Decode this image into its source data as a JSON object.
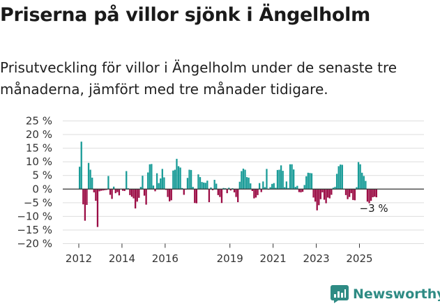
{
  "title": "Priserna på villor sjönk i Ängelholm",
  "subtitle": "Prisutveckling för villor i Ängelholm under de senaste tre månaderna, jämfört med tre månader tidigare.",
  "brand": {
    "name": "Newsworthy",
    "icon": "newsworthy-logo-icon"
  },
  "colors": {
    "positive": "#1a9c98",
    "negative": "#9b0d45",
    "grid": "#dddddd"
  },
  "chart_data": {
    "type": "bar",
    "ylim": [
      -20,
      25
    ],
    "yticks": [
      25,
      20,
      15,
      10,
      5,
      0,
      -5,
      -10,
      -15,
      -20
    ],
    "ytick_labels": [
      "25 %",
      "20 %",
      "15 %",
      "10 %",
      "5 %",
      "0 %",
      "−5 %",
      "−10 %",
      "−15 %",
      "−20 %"
    ],
    "xticks": [
      "2012",
      "2014",
      "2016",
      "2019",
      "2021",
      "2023",
      "2025"
    ],
    "annotation": "−3 %",
    "x_start": "2012-01",
    "values": [
      8.2,
      17.4,
      -5.6,
      -11.6,
      -5.8,
      9.6,
      7.1,
      4.2,
      -1.2,
      -4.3,
      -13.9,
      -0.8,
      -0.6,
      -0.5,
      -0.4,
      -0.3,
      4.8,
      -2.1,
      -3.6,
      0.9,
      -1.5,
      -1.1,
      -2.3,
      0.0,
      -0.6,
      -0.7,
      6.6,
      0.3,
      -2.2,
      -2.8,
      -3.4,
      -7.1,
      -4.6,
      -3.2,
      0.8,
      4.9,
      -2.4,
      -5.7,
      6.1,
      9.1,
      9.2,
      1.3,
      -0.8,
      5.8,
      2.2,
      3.9,
      7.4,
      4.3,
      -0.3,
      -2.9,
      -4.5,
      -4.1,
      6.8,
      7.1,
      11.1,
      8.4,
      7.9,
      0.4,
      -2.1,
      -0.2,
      4.1,
      7.1,
      7.0,
      0.8,
      -5.1,
      -5.2,
      5.4,
      4.4,
      2.6,
      2.4,
      2.3,
      3.1,
      -4.8,
      0.6,
      -0.4,
      3.4,
      2.0,
      -2.2,
      -2.9,
      -5.1,
      0.4,
      0.3,
      -1.5,
      0.5,
      -0.5,
      0.3,
      -1.2,
      -2.9,
      -4.8,
      2.7,
      6.6,
      7.5,
      7.1,
      4.4,
      4.2,
      2.1,
      -0.7,
      -3.4,
      -3.1,
      -2.2,
      2.2,
      -1.1,
      2.8,
      0.7,
      7.4,
      -0.2,
      0.7,
      1.9,
      2.2,
      0.5,
      7.0,
      7.1,
      8.7,
      6.7,
      0.7,
      2.8,
      0.4,
      9.1,
      9.1,
      7.2,
      0.8,
      1.2,
      -1.1,
      -1.2,
      -1.0,
      1.5,
      4.7,
      6.0,
      5.9,
      5.8,
      -3.1,
      -4.6,
      -7.8,
      -5.9,
      -3.7,
      -1.2,
      -3.9,
      -5.2,
      -3.1,
      -3.4,
      -2.1,
      0.5,
      0.8,
      5.6,
      8.4,
      9.0,
      8.9,
      0.0,
      -2.2,
      -3.7,
      -2.9,
      -1.5,
      -4.0,
      -4.1,
      0.7,
      9.9,
      9.1,
      6.0,
      4.8,
      3.0,
      -4.6,
      -5.2,
      -4.3,
      -3.0,
      -2.8,
      -3.0
    ]
  }
}
